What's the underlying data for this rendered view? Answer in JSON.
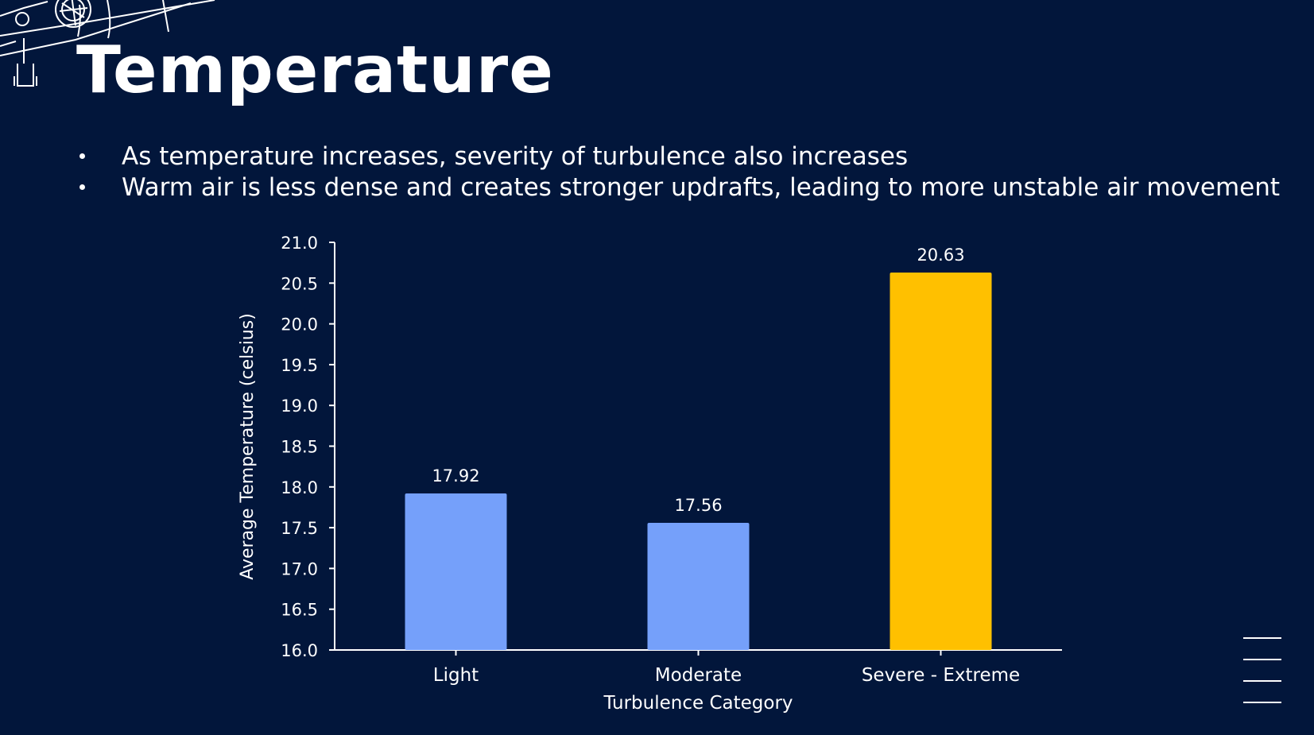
{
  "slide": {
    "title": "Temperature",
    "bullets": [
      "As temperature increases, severity of turbulence also increases",
      "Warm air is less dense and creates stronger updrafts, leading to more unstable air movement"
    ],
    "decorations": {
      "top_left_icon": "airplane-sketch-icon",
      "bottom_right_icon": "menu-lines-icon"
    },
    "colors": {
      "background": "#02163b",
      "text": "#ffffff",
      "bar_default": "#75a0fa",
      "bar_highlight": "#ffc000"
    }
  },
  "chart_data": {
    "type": "bar",
    "categories": [
      "Light",
      "Moderate",
      "Severe - Extreme"
    ],
    "values": [
      17.92,
      17.56,
      20.63
    ],
    "value_labels": [
      "17.92",
      "17.56",
      "20.63"
    ],
    "bar_colors": [
      "#75a0fa",
      "#75a0fa",
      "#ffc000"
    ],
    "title": "",
    "xlabel": "Turbulence Category",
    "ylabel": "Average Temperature (celsius)",
    "ylim": [
      16.0,
      21.0
    ],
    "yticks": [
      16.0,
      16.5,
      17.0,
      17.5,
      18.0,
      18.5,
      19.0,
      19.5,
      20.0,
      20.5,
      21.0
    ],
    "ytick_labels": [
      "16.0",
      "16.5",
      "17.0",
      "17.5",
      "18.0",
      "18.5",
      "19.0",
      "19.5",
      "20.0",
      "20.5",
      "21.0"
    ],
    "grid": false,
    "legend": "none"
  }
}
